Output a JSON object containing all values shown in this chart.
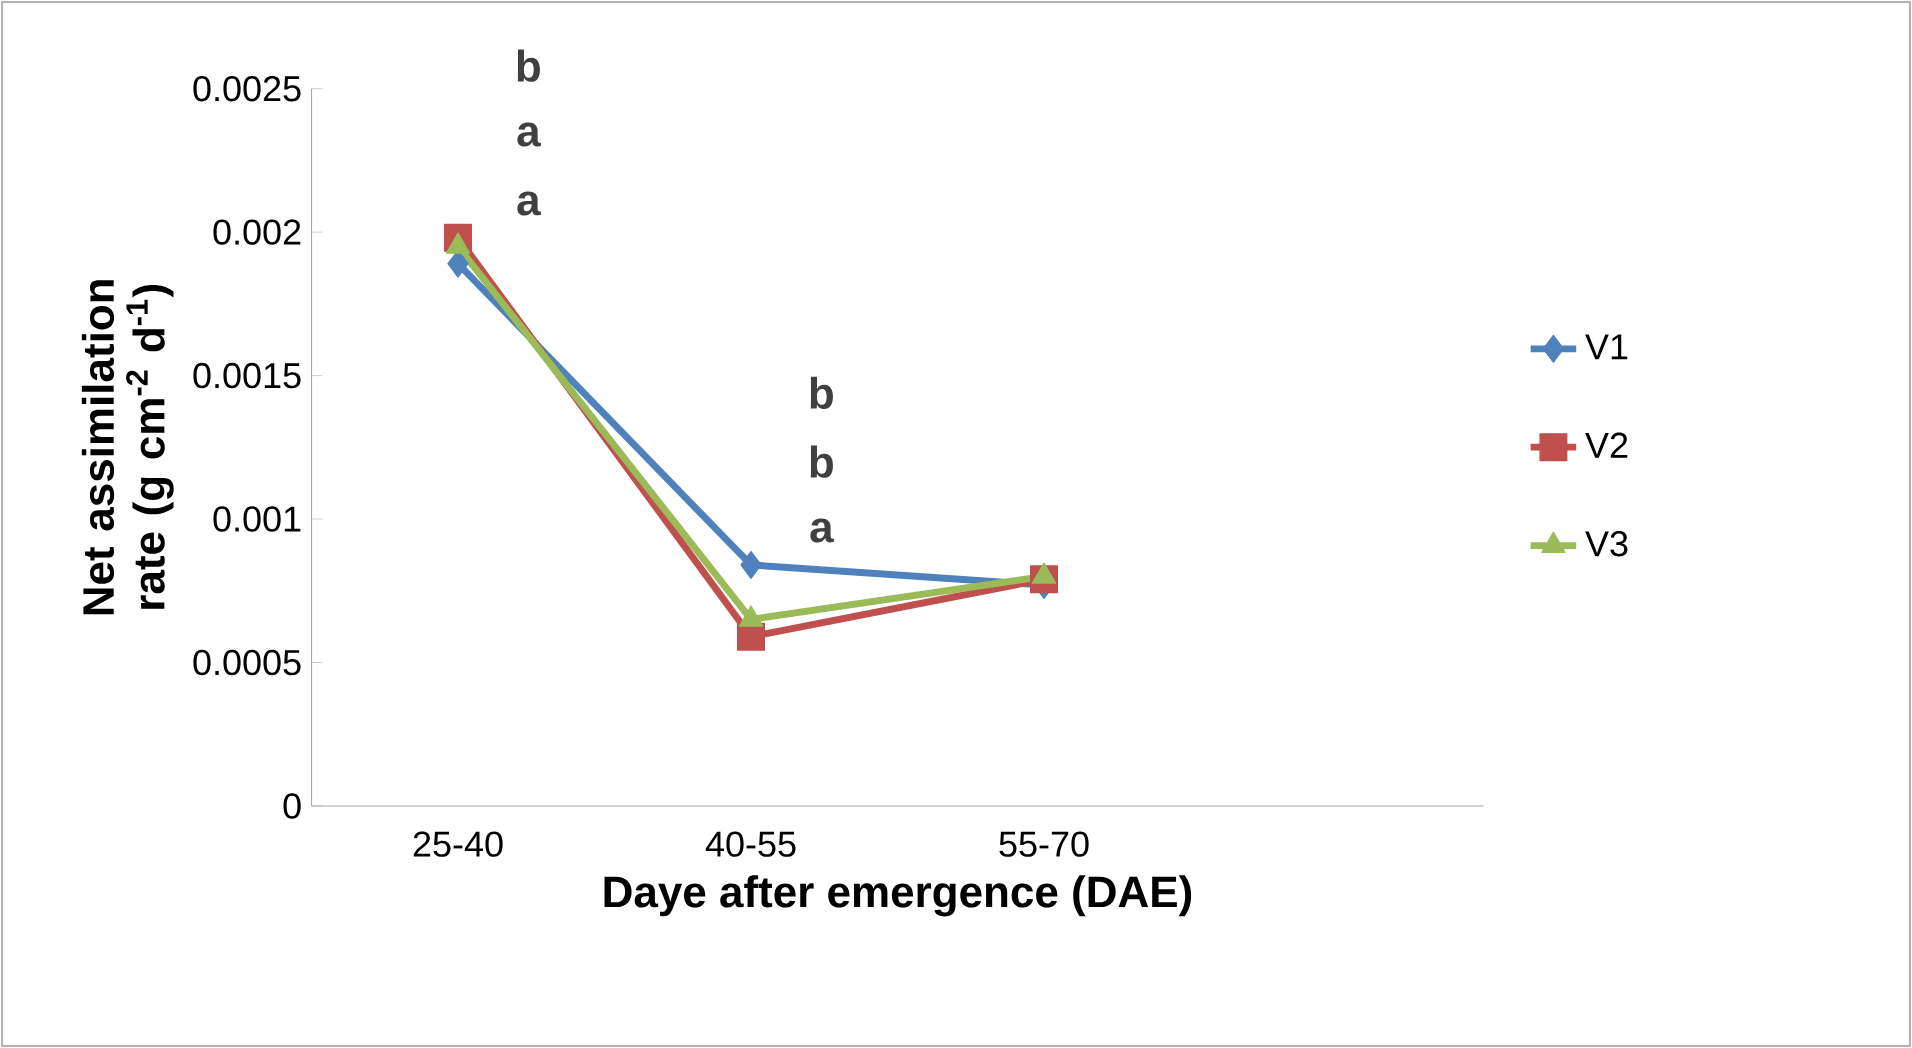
{
  "chart_data": {
    "type": "line",
    "xlabel": "Daye after emergence (DAE)",
    "ylabel": "Net assimilation rate (g cm$^{-2}$ d$^{-1}$)",
    "categories": [
      "25-40",
      "40-55",
      "55-70",
      null
    ],
    "series": [
      {
        "name": "V1",
        "color": "#4f81bd",
        "marker": "diamond",
        "values": [
          0.00189,
          0.00084,
          0.00077,
          null
        ]
      },
      {
        "name": "V2",
        "color": "#c0504d",
        "marker": "square",
        "values": [
          0.00198,
          0.00059,
          0.00079,
          null
        ]
      },
      {
        "name": "V3",
        "color": "#9bbb59",
        "marker": "triangle",
        "values": [
          0.00195,
          0.00065,
          0.0008,
          null
        ]
      }
    ],
    "ylim": [
      0,
      0.0025
    ],
    "yticks": [
      0,
      0.0005,
      0.001,
      0.0015,
      0.002,
      0.0025
    ],
    "legend": "right",
    "grid": false,
    "line_style": "solid",
    "annotations": [
      "b",
      "a",
      "a",
      "b",
      "b",
      "a"
    ]
  }
}
